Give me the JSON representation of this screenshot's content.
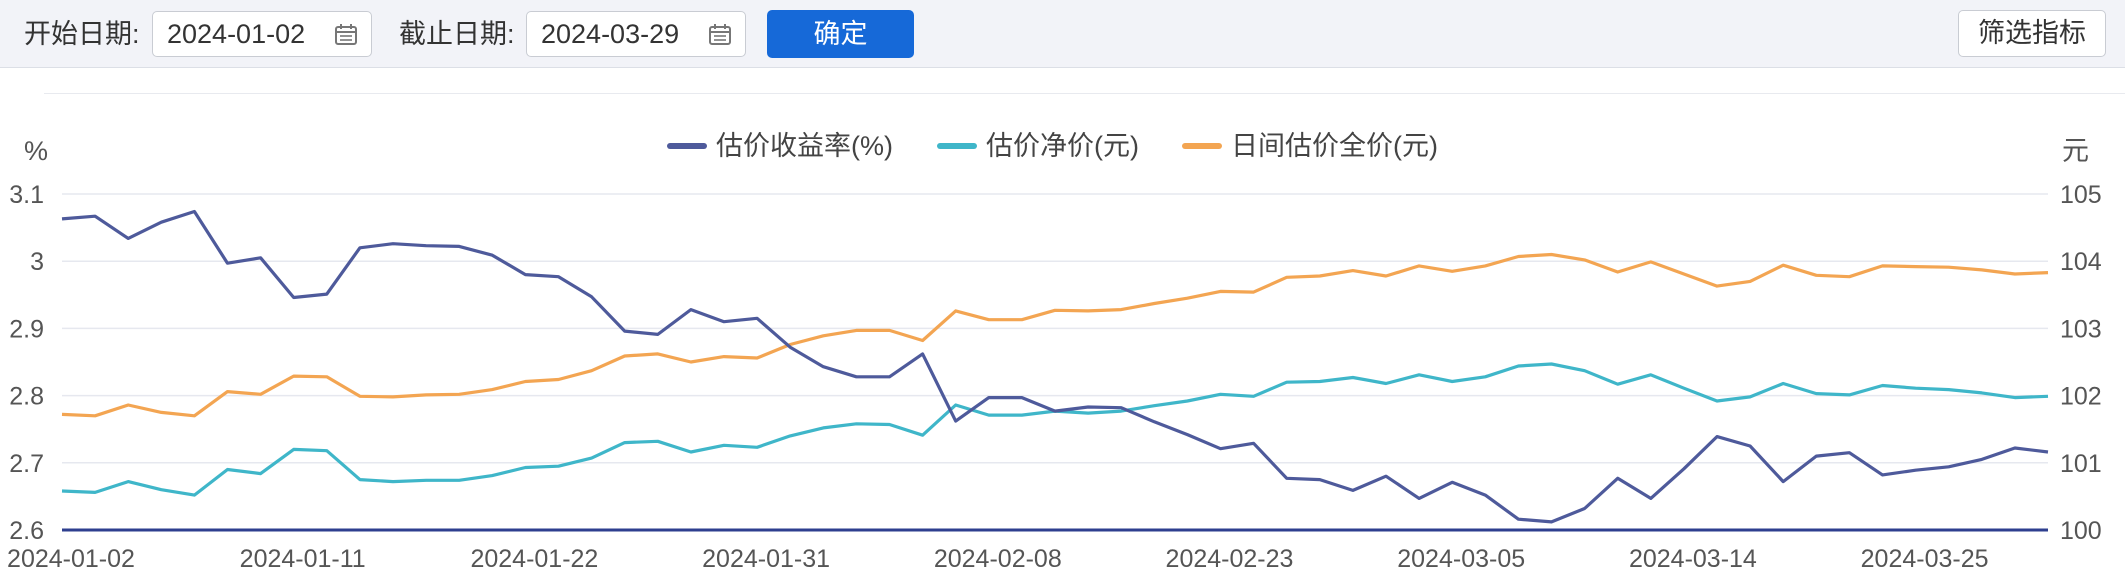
{
  "toolbar": {
    "start_label": "开始日期:",
    "start_value": "2024-01-02",
    "end_label": "截止日期:",
    "end_value": "2024-03-29",
    "confirm": "确定",
    "filter": "筛选指标"
  },
  "colors": {
    "yield": "#4e5a9b",
    "net": "#3fb6c9",
    "full": "#f3a552",
    "accent": "#1669d8"
  },
  "icons": [
    "calendar-icon"
  ],
  "chart_data": {
    "type": "line",
    "left_unit": "%",
    "right_unit": "元",
    "left_ylim": [
      2.6,
      3.1
    ],
    "right_ylim": [
      100,
      105
    ],
    "left_ticks": [
      "3.1",
      "3",
      "2.9",
      "2.8",
      "2.7",
      "2.6"
    ],
    "right_ticks": [
      "105",
      "104",
      "103",
      "102",
      "101",
      "100"
    ],
    "x_tick_labels": [
      "2024-01-02",
      "2024-01-11",
      "2024-01-22",
      "2024-01-31",
      "2024-02-08",
      "2024-02-23",
      "2024-03-05",
      "2024-03-14",
      "2024-03-25"
    ],
    "x_tick_index": [
      0,
      7,
      14,
      21,
      28,
      35,
      42,
      49,
      56
    ],
    "grid": true,
    "legend_position": "top-center",
    "series": [
      {
        "name": "估价收益率(%)",
        "axis": "left",
        "values": [
          3.063,
          3.067,
          3.034,
          3.058,
          3.074,
          2.997,
          3.005,
          2.946,
          2.951,
          3.02,
          3.026,
          3.023,
          3.022,
          3.009,
          2.98,
          2.977,
          2.947,
          2.896,
          2.891,
          2.928,
          2.91,
          2.915,
          2.872,
          2.843,
          2.828,
          2.828,
          2.862,
          2.762,
          2.797,
          2.797,
          2.777,
          2.783,
          2.782,
          2.761,
          2.742,
          2.721,
          2.729,
          2.677,
          2.675,
          2.659,
          2.68,
          2.647,
          2.671,
          2.652,
          2.616,
          2.612,
          2.632,
          2.677,
          2.647,
          2.691,
          2.739,
          2.725,
          2.672,
          2.71,
          2.715,
          2.682,
          2.689,
          2.694,
          2.705,
          2.722,
          2.716
        ]
      },
      {
        "name": "估价净价(元)",
        "axis": "right",
        "values": [
          100.58,
          100.56,
          100.72,
          100.6,
          100.52,
          100.9,
          100.84,
          101.2,
          101.18,
          100.75,
          100.72,
          100.74,
          100.74,
          100.81,
          100.93,
          100.95,
          101.07,
          101.3,
          101.32,
          101.16,
          101.26,
          101.23,
          101.4,
          101.52,
          101.58,
          101.57,
          101.41,
          101.86,
          101.71,
          101.71,
          101.77,
          101.74,
          101.77,
          101.85,
          101.92,
          102.02,
          101.99,
          102.2,
          102.21,
          102.27,
          102.18,
          102.31,
          102.21,
          102.28,
          102.44,
          102.47,
          102.37,
          102.17,
          102.31,
          102.11,
          101.92,
          101.98,
          102.18,
          102.03,
          102.01,
          102.15,
          102.11,
          102.09,
          102.04,
          101.97,
          101.99
        ]
      },
      {
        "name": "日间估价全价(元)",
        "axis": "right",
        "values": [
          101.72,
          101.7,
          101.86,
          101.75,
          101.7,
          102.06,
          102.02,
          102.29,
          102.28,
          101.99,
          101.98,
          102.01,
          102.02,
          102.09,
          102.21,
          102.24,
          102.37,
          102.59,
          102.62,
          102.5,
          102.58,
          102.56,
          102.76,
          102.89,
          102.97,
          102.97,
          102.82,
          103.26,
          103.13,
          103.13,
          103.27,
          103.26,
          103.28,
          103.37,
          103.45,
          103.55,
          103.54,
          103.76,
          103.78,
          103.86,
          103.78,
          103.93,
          103.85,
          103.93,
          104.07,
          104.1,
          104.02,
          103.84,
          103.99,
          103.81,
          103.63,
          103.7,
          103.94,
          103.79,
          103.77,
          103.93,
          103.92,
          103.91,
          103.87,
          103.81,
          103.83
        ]
      }
    ]
  }
}
